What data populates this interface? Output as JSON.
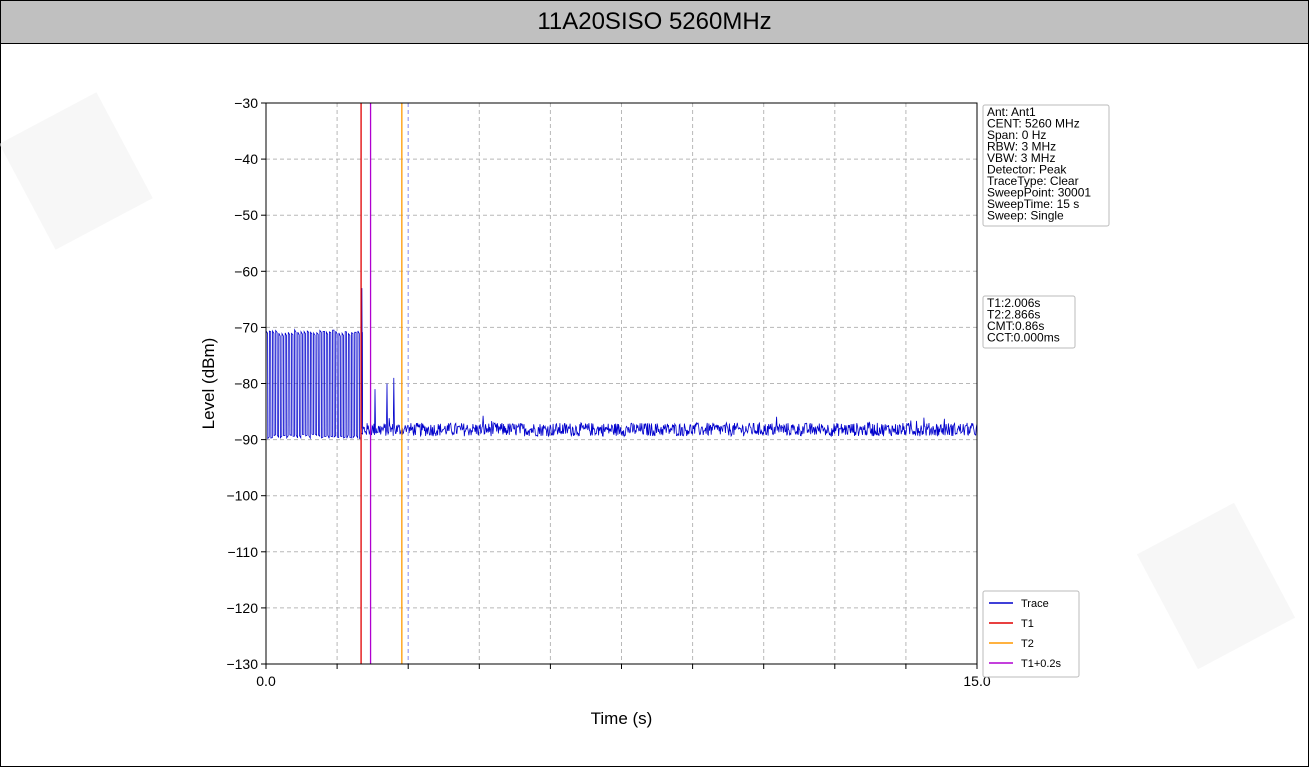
{
  "header": {
    "title": "11A20SISO 5260MHz"
  },
  "chart_data": {
    "type": "line",
    "title": "11A20SISO 5260MHz",
    "xlabel": "Time (s)",
    "ylabel": "Level (dBm)",
    "xlim": [
      0.0,
      15.0
    ],
    "ylim": [
      -130,
      -30
    ],
    "x_tick_labels": [
      "0.0",
      "15.0"
    ],
    "x_minor_ticks": [
      1.5,
      3.0,
      4.5,
      6.0,
      7.5,
      9.0,
      10.5,
      12.0,
      13.5
    ],
    "y_ticks": [
      -30,
      -40,
      -50,
      -60,
      -70,
      -80,
      -90,
      -100,
      -110,
      -120,
      -130
    ],
    "y_tick_labels": [
      "−30",
      "−40",
      "−50",
      "−60",
      "−70",
      "−80",
      "−90",
      "−100",
      "−110",
      "−120",
      "−130"
    ],
    "grid": true,
    "markers": [
      {
        "name": "T1",
        "x": 2.006,
        "color": "#e00000",
        "style": "solid"
      },
      {
        "name": "T2",
        "x": 2.866,
        "color": "#ff9900",
        "style": "solid"
      },
      {
        "name": "T1+0.2s",
        "x": 2.206,
        "color": "#b000d0",
        "style": "solid"
      }
    ],
    "extra_line": {
      "x": 3.0,
      "color": "#9999ff",
      "style": "dashed"
    },
    "series": [
      {
        "name": "Trace",
        "color": "#0000cc",
        "bursts": {
          "x_start": 0.0,
          "x_end": 2.006,
          "period": 0.0667,
          "high": -70.8,
          "low": -89.0
        },
        "tail_bursts": [
          {
            "x": 2.02,
            "high": -63.0
          },
          {
            "x": 2.3,
            "high": -81.0
          },
          {
            "x": 2.55,
            "high": -80.0
          },
          {
            "x": 2.7,
            "high": -79.0
          }
        ],
        "noise_floor": {
          "x_start": 2.0,
          "x_end": 15.0,
          "mean": -88.2,
          "spread": 1.2
        }
      }
    ],
    "info_box_1": [
      "Ant: Ant1",
      "CENT: 5260 MHz",
      "Span: 0 Hz",
      "RBW: 3 MHz",
      "VBW: 3 MHz",
      "Detector: Peak",
      "TraceType: Clear",
      "SweepPoint: 30001",
      "SweepTime: 15 s",
      "Sweep: Single"
    ],
    "info_box_2": [
      "T1:2.006s",
      "T2:2.866s",
      "CMT:0.86s",
      "CCT:0.000ms"
    ],
    "legend": {
      "position": "bottom-right",
      "entries": [
        {
          "label": "Trace",
          "color": "#0000cc"
        },
        {
          "label": "T1",
          "color": "#e00000"
        },
        {
          "label": "T2",
          "color": "#ff9900"
        },
        {
          "label": "T1+0.2s",
          "color": "#b000d0"
        }
      ]
    }
  }
}
